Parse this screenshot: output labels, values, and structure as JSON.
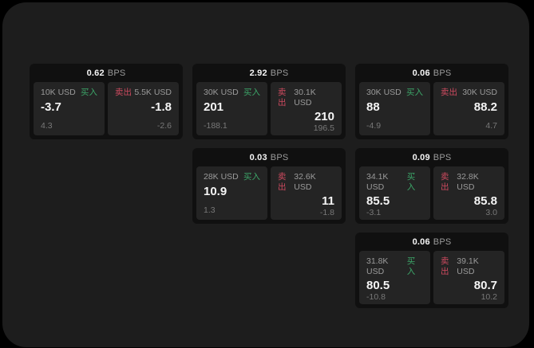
{
  "colors": {
    "background": "#000000",
    "panel-bg": "#1d1d1d",
    "card-bg": "#101010",
    "tile-bg": "#242424",
    "text-primary": "#f5f5f5",
    "text-secondary": "#9b9b9b",
    "text-dim": "#787878",
    "buy-green": "#3ca568",
    "sell-red": "#cd4a5f"
  },
  "labels": {
    "bps_unit": "BPS",
    "buy": "买入",
    "sell": "卖出"
  },
  "cards": [
    {
      "col": 1,
      "row": 1,
      "bps": "0.62",
      "buy": {
        "amount": "10K USD",
        "price": "-3.7",
        "delta": "4.3"
      },
      "sell": {
        "amount": "5.5K USD",
        "price": "-1.8",
        "delta": "-2.6"
      }
    },
    {
      "col": 2,
      "row": 1,
      "bps": "2.92",
      "buy": {
        "amount": "30K USD",
        "price": "201",
        "delta": "-188.1"
      },
      "sell": {
        "amount": "30.1K USD",
        "price": "210",
        "delta": "196.5"
      }
    },
    {
      "col": 3,
      "row": 1,
      "bps": "0.06",
      "buy": {
        "amount": "30K USD",
        "price": "88",
        "delta": "-4.9"
      },
      "sell": {
        "amount": "30K USD",
        "price": "88.2",
        "delta": "4.7"
      }
    },
    {
      "col": 2,
      "row": 2,
      "bps": "0.03",
      "buy": {
        "amount": "28K USD",
        "price": "10.9",
        "delta": "1.3"
      },
      "sell": {
        "amount": "32.6K USD",
        "price": "11",
        "delta": "-1.8"
      }
    },
    {
      "col": 3,
      "row": 2,
      "bps": "0.09",
      "buy": {
        "amount": "34.1K USD",
        "price": "85.5",
        "delta": "-3.1"
      },
      "sell": {
        "amount": "32.8K USD",
        "price": "85.8",
        "delta": "3.0"
      }
    },
    {
      "col": 3,
      "row": 3,
      "bps": "0.06",
      "buy": {
        "amount": "31.8K USD",
        "price": "80.5",
        "delta": "-10.8"
      },
      "sell": {
        "amount": "39.1K USD",
        "price": "80.7",
        "delta": "10.2"
      }
    }
  ]
}
